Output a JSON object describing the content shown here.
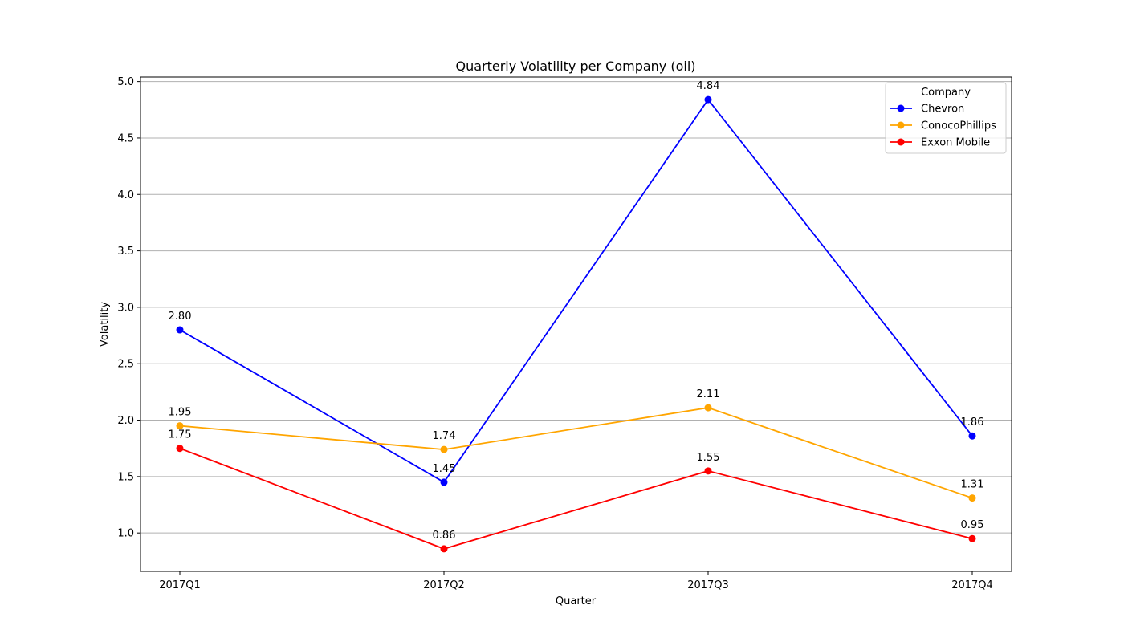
{
  "chart_data": {
    "type": "line",
    "title": "Quarterly Volatility per Company (oil)",
    "xlabel": "Quarter",
    "ylabel": "Volatility",
    "categories": [
      "2017Q1",
      "2017Q2",
      "2017Q3",
      "2017Q4"
    ],
    "series": [
      {
        "name": "Chevron",
        "color": "#0000ff",
        "values": [
          2.8,
          1.45,
          4.84,
          1.86
        ],
        "labels": [
          "2.80",
          "1.45",
          "4.84",
          "1.86"
        ]
      },
      {
        "name": "ConocoPhillips",
        "color": "#ffa500",
        "values": [
          1.95,
          1.74,
          2.11,
          1.31
        ],
        "labels": [
          "1.95",
          "1.74",
          "2.11",
          "1.31"
        ]
      },
      {
        "name": "Exxon Mobile",
        "color": "#ff0000",
        "values": [
          1.75,
          0.86,
          1.55,
          0.95
        ],
        "labels": [
          "1.75",
          "0.86",
          "1.55",
          "0.95"
        ]
      }
    ],
    "yticks": [
      1.0,
      1.5,
      2.0,
      2.5,
      3.0,
      3.5,
      4.0,
      4.5,
      5.0
    ],
    "ytick_labels": [
      "1.0",
      "1.5",
      "2.0",
      "2.5",
      "3.0",
      "3.5",
      "4.0",
      "4.5",
      "5.0"
    ],
    "ylim": [
      0.66,
      5.04
    ],
    "grid": "y",
    "legend": {
      "title": "Company",
      "placement": "top-right"
    }
  }
}
